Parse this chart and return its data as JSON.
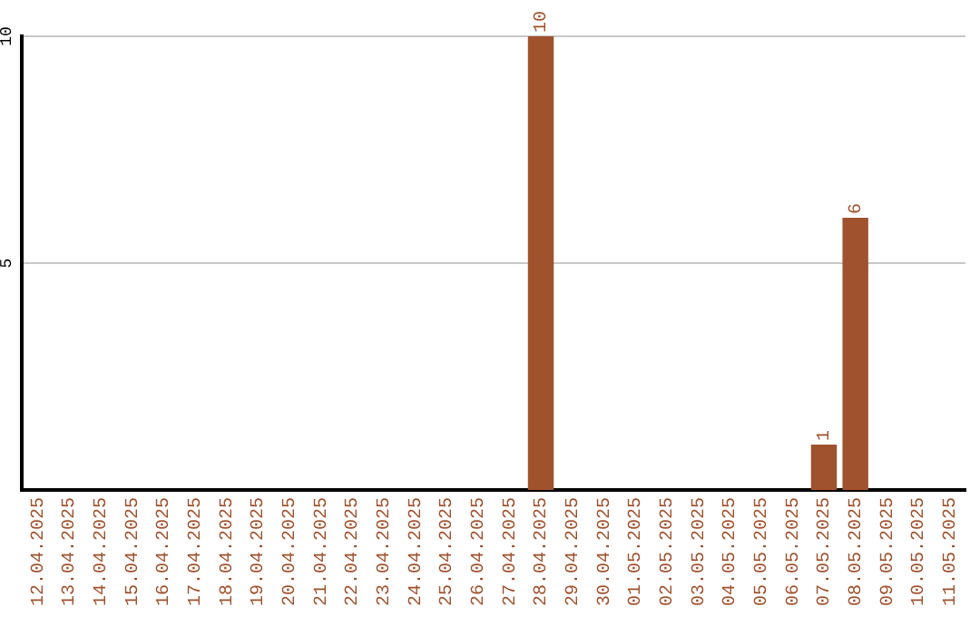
{
  "chart_data": {
    "type": "bar",
    "categories": [
      "12.04.2025",
      "13.04.2025",
      "14.04.2025",
      "15.04.2025",
      "16.04.2025",
      "17.04.2025",
      "18.04.2025",
      "19.04.2025",
      "20.04.2025",
      "21.04.2025",
      "22.04.2025",
      "23.04.2025",
      "24.04.2025",
      "25.04.2025",
      "26.04.2025",
      "27.04.2025",
      "28.04.2025",
      "29.04.2025",
      "30.04.2025",
      "01.05.2025",
      "02.05.2025",
      "03.05.2025",
      "04.05.2025",
      "05.05.2025",
      "06.05.2025",
      "07.05.2025",
      "08.05.2025",
      "09.05.2025",
      "10.05.2025",
      "11.05.2025"
    ],
    "values": [
      0,
      0,
      0,
      0,
      0,
      0,
      0,
      0,
      0,
      0,
      0,
      0,
      0,
      0,
      0,
      0,
      10,
      0,
      0,
      0,
      0,
      0,
      0,
      0,
      0,
      1,
      6,
      0,
      0,
      0
    ],
    "value_labels": [
      null,
      null,
      null,
      null,
      null,
      null,
      null,
      null,
      null,
      null,
      null,
      null,
      null,
      null,
      null,
      null,
      "10",
      null,
      null,
      null,
      null,
      null,
      null,
      null,
      null,
      "1",
      "6",
      null,
      null,
      null
    ],
    "color": "#a0522d",
    "ylim": [
      0,
      10
    ],
    "yticks": [
      5,
      10
    ],
    "grid": "y",
    "legend": false
  }
}
